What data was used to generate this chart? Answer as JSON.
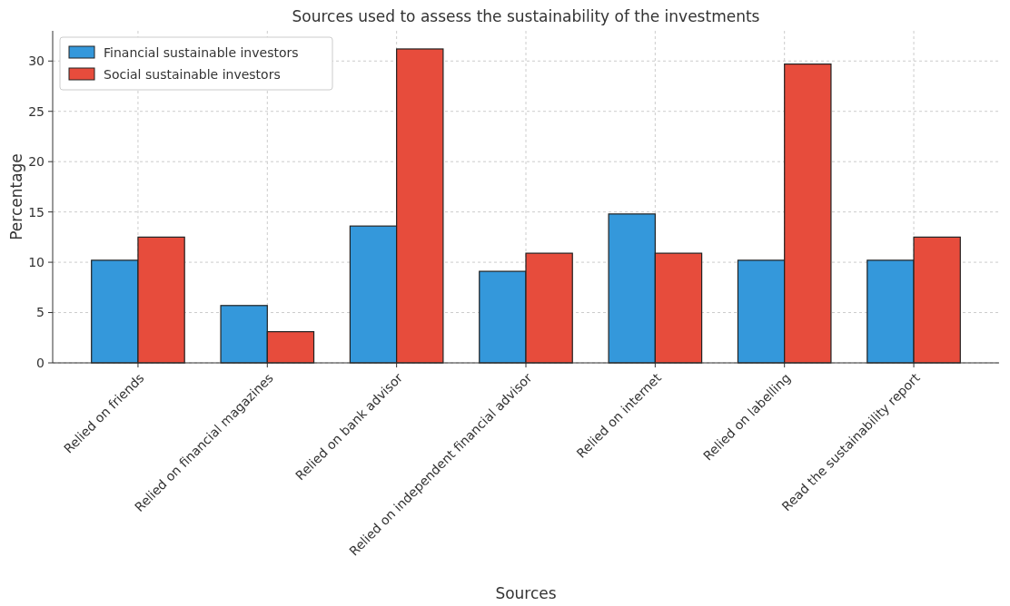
{
  "chart_data": {
    "type": "bar",
    "title": "Sources used to assess the sustainability of the investments",
    "xlabel": "Sources",
    "ylabel": "Percentage",
    "categories": [
      "Relied on friends",
      "Relied on financial magazines",
      "Relied on bank advisor",
      "Relied on independent financial advisor",
      "Relied on internet",
      "Relied on labelling",
      "Read the sustainability report"
    ],
    "series": [
      {
        "name": "Financial sustainable investors",
        "color": "#3498db",
        "values": [
          10.2,
          5.7,
          13.6,
          9.1,
          14.8,
          10.2,
          10.2
        ]
      },
      {
        "name": "Social sustainable investors",
        "color": "#e74c3c",
        "values": [
          12.5,
          3.1,
          31.2,
          10.9,
          10.9,
          29.7,
          12.5
        ]
      }
    ],
    "ylim": [
      0,
      33
    ],
    "yticks": [
      0,
      5,
      10,
      15,
      20,
      25,
      30
    ],
    "grid": true,
    "legend": "top left"
  }
}
